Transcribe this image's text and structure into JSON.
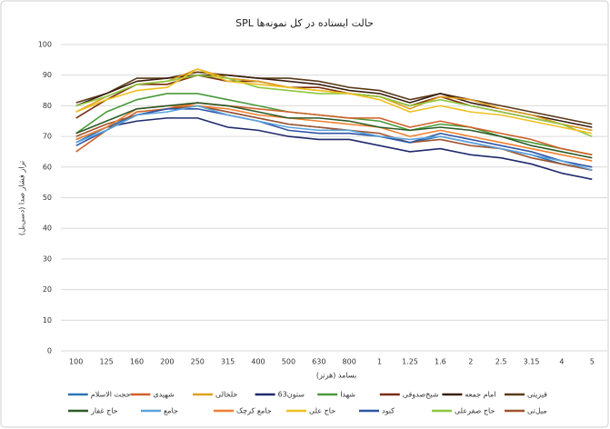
{
  "chart_data": {
    "type": "line",
    "title": "SPL حالت ایستاده در کل نمونه‌ها",
    "x_label": "بسامد (هرتز)",
    "y_label": "تراز فشار صدا (دسی‌بل)",
    "categories": [
      "100",
      "125",
      "160",
      "200",
      "250",
      "315",
      "400",
      "500",
      "630",
      "800",
      "1",
      "1.25",
      "1.6",
      "2",
      "2.5",
      "3.15",
      "4",
      "5"
    ],
    "ylim": [
      0,
      100
    ],
    "yticks": [
      0,
      10,
      20,
      30,
      40,
      50,
      60,
      70,
      80,
      90,
      100
    ],
    "grid": true,
    "series": [
      {
        "name": "قیزیتی",
        "color": "#5a3a1a",
        "values": [
          81,
          84,
          89,
          89,
          91,
          90,
          89,
          89,
          88,
          86,
          85,
          82,
          84,
          82,
          80,
          78,
          76,
          74
        ]
      },
      {
        "name": "امام جمعه",
        "color": "#3b1f0f",
        "values": [
          80,
          84,
          88,
          89,
          90,
          90,
          89,
          88,
          87,
          85,
          84,
          81,
          84,
          81,
          79,
          77,
          75,
          73
        ]
      },
      {
        "name": "شیخ‌صدوقی",
        "color": "#7b2d0e",
        "values": [
          76,
          82,
          87,
          87,
          90,
          88,
          88,
          86,
          86,
          84,
          83,
          80,
          83,
          80,
          78,
          76,
          74,
          72
        ]
      },
      {
        "name": "شهدا",
        "color": "#4a9a3a",
        "values": [
          71,
          78,
          82,
          84,
          84,
          82,
          80,
          78,
          77,
          76,
          75,
          72,
          74,
          73,
          70,
          68,
          66,
          64
        ]
      },
      {
        "name": "63ستون",
        "color": "#1f2a6b",
        "values": [
          69,
          73,
          75,
          76,
          76,
          73,
          72,
          70,
          69,
          69,
          67,
          65,
          66,
          64,
          63,
          61,
          58,
          56
        ]
      },
      {
        "name": "خلخالی",
        "color": "#e0a020",
        "values": [
          78,
          83,
          87,
          88,
          92,
          89,
          88,
          86,
          85,
          84,
          83,
          79,
          83,
          82,
          79,
          77,
          74,
          72
        ]
      },
      {
        "name": "شهیدی",
        "color": "#d0602a",
        "values": [
          65,
          72,
          78,
          79,
          81,
          80,
          79,
          78,
          77,
          76,
          76,
          73,
          75,
          73,
          71,
          69,
          66,
          64
        ]
      },
      {
        "name": "حجت الاسلام",
        "color": "#2e75b6",
        "values": [
          68,
          73,
          77,
          79,
          80,
          78,
          76,
          74,
          73,
          72,
          70,
          68,
          70,
          68,
          66,
          64,
          61,
          59
        ]
      },
      {
        "name": "میل‌تی",
        "color": "#a0522d",
        "values": [
          70,
          74,
          77,
          79,
          80,
          78,
          76,
          74,
          73,
          72,
          71,
          68,
          69,
          67,
          66,
          63,
          61,
          59
        ]
      },
      {
        "name": "حاج صفرعلی",
        "color": "#8dc63f",
        "values": [
          80,
          83,
          87,
          88,
          90,
          89,
          86,
          85,
          84,
          84,
          83,
          80,
          82,
          80,
          78,
          76,
          74,
          70
        ]
      },
      {
        "name": "کبود",
        "color": "#2f55a4",
        "values": [
          67,
          72,
          77,
          79,
          79,
          77,
          75,
          72,
          71,
          71,
          70,
          68,
          71,
          69,
          67,
          65,
          62,
          60
        ]
      },
      {
        "name": "حاج علی",
        "color": "#f0c020",
        "values": [
          78,
          82,
          85,
          86,
          92,
          88,
          87,
          86,
          85,
          84,
          82,
          78,
          80,
          78,
          77,
          75,
          73,
          71
        ]
      },
      {
        "name": "جامع کرچک",
        "color": "#f08030",
        "values": [
          69,
          73,
          79,
          80,
          80,
          79,
          77,
          76,
          75,
          74,
          73,
          70,
          72,
          70,
          68,
          66,
          64,
          62
        ]
      },
      {
        "name": "جامع",
        "color": "#5ba3dc",
        "values": [
          68,
          72,
          77,
          78,
          80,
          77,
          75,
          73,
          72,
          72,
          70,
          69,
          70,
          68,
          66,
          64,
          62,
          59
        ]
      },
      {
        "name": "حاج غفار",
        "color": "#2d5a27",
        "values": [
          71,
          75,
          79,
          80,
          81,
          80,
          78,
          76,
          76,
          75,
          73,
          72,
          73,
          72,
          70,
          67,
          65,
          63
        ]
      }
    ]
  }
}
